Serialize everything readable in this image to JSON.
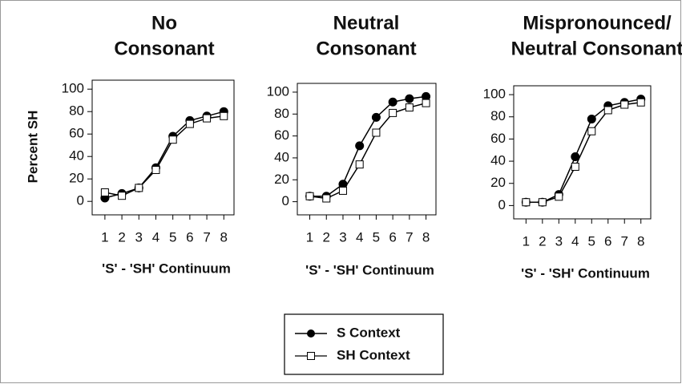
{
  "chart_data": [
    {
      "type": "line",
      "title": [
        "No",
        "Consonant"
      ],
      "ylabel": "Percent SH",
      "xlabel": "'S' - 'SH' Continuum",
      "x": [
        1,
        2,
        3,
        4,
        5,
        6,
        7,
        8
      ],
      "xlim": [
        0.25,
        8.6
      ],
      "xticks": [
        1,
        2,
        3,
        4,
        5,
        6,
        7,
        8
      ],
      "ylim": [
        -12,
        108
      ],
      "yticks": [
        0,
        20,
        40,
        60,
        80,
        100
      ],
      "series": [
        {
          "name": "S Context",
          "color": "#000000",
          "marker": "circle",
          "marker_fill": "#000000",
          "values": [
            3,
            7,
            12,
            30,
            58,
            72,
            76,
            80
          ]
        },
        {
          "name": "SH Context",
          "color": "#000000",
          "marker": "square",
          "marker_fill": "#ffffff",
          "values": [
            8,
            5,
            12,
            28,
            55,
            69,
            74,
            76
          ]
        }
      ]
    },
    {
      "type": "line",
      "title": [
        "Neutral",
        "Consonant"
      ],
      "xlabel": "'S' - 'SH' Continuum",
      "x": [
        1,
        2,
        3,
        4,
        5,
        6,
        7,
        8
      ],
      "xlim": [
        0.25,
        8.6
      ],
      "xticks": [
        1,
        2,
        3,
        4,
        5,
        6,
        7,
        8
      ],
      "ylim": [
        -12,
        108
      ],
      "yticks": [
        0,
        20,
        40,
        60,
        80,
        100
      ],
      "series": [
        {
          "name": "S Context",
          "color": "#000000",
          "marker": "circle",
          "marker_fill": "#000000",
          "values": [
            5,
            5,
            16,
            51,
            77,
            91,
            94,
            96
          ]
        },
        {
          "name": "SH Context",
          "color": "#000000",
          "marker": "square",
          "marker_fill": "#ffffff",
          "values": [
            5,
            3,
            10,
            34,
            63,
            81,
            86,
            90
          ]
        }
      ]
    },
    {
      "type": "line",
      "title": [
        "Mispronounced/",
        "Neutral Consonant"
      ],
      "xlabel": "'S' - 'SH' Continuum",
      "x": [
        1,
        2,
        3,
        4,
        5,
        6,
        7,
        8
      ],
      "xlim": [
        0.25,
        8.6
      ],
      "xticks": [
        1,
        2,
        3,
        4,
        5,
        6,
        7,
        8
      ],
      "ylim": [
        -12,
        108
      ],
      "yticks": [
        0,
        20,
        40,
        60,
        80,
        100
      ],
      "series": [
        {
          "name": "S Context",
          "color": "#000000",
          "marker": "circle",
          "marker_fill": "#000000",
          "values": [
            3,
            3,
            10,
            44,
            78,
            90,
            93,
            96
          ]
        },
        {
          "name": "SH Context",
          "color": "#000000",
          "marker": "square",
          "marker_fill": "#ffffff",
          "values": [
            3,
            3,
            8,
            35,
            67,
            86,
            91,
            93
          ]
        }
      ]
    }
  ]
}
